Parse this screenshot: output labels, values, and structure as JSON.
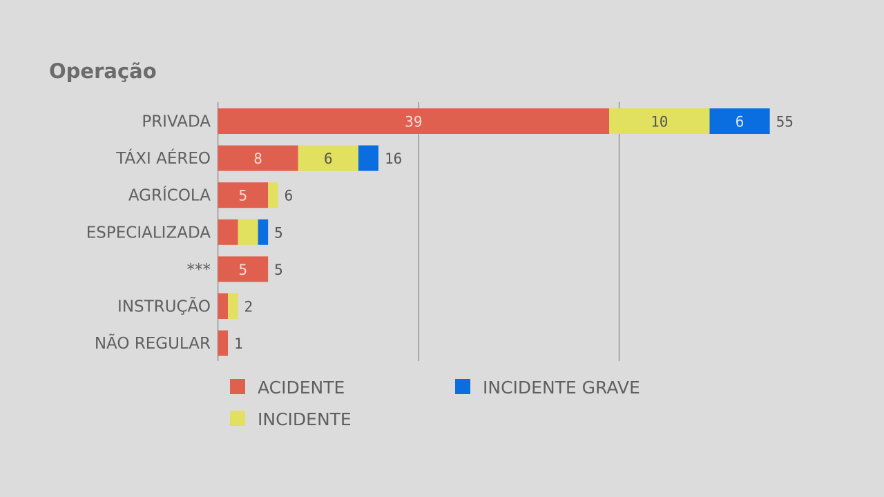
{
  "chart_data": {
    "type": "bar",
    "orientation": "horizontal",
    "stacked": true,
    "title": "Operação",
    "categories": [
      "PRIVADA",
      "TÁXI AÉREO",
      "AGRÍCOLA",
      "ESPECIALIZADA",
      "***",
      "INSTRUÇÃO",
      "NÃO REGULAR"
    ],
    "series": [
      {
        "name": "ACIDENTE",
        "color": "#e06050",
        "label_color": "#f6ddd8",
        "values": [
          39,
          8,
          5,
          2,
          5,
          1,
          1
        ],
        "labels": [
          "39",
          "8",
          "5",
          "",
          "5",
          "",
          ""
        ]
      },
      {
        "name": "INCIDENTE",
        "color": "#e1e05f",
        "label_color": "#555555",
        "values": [
          10,
          6,
          1,
          2,
          0,
          1,
          0
        ],
        "labels": [
          "10",
          "6",
          "",
          "",
          "",
          "",
          ""
        ]
      },
      {
        "name": "INCIDENTE GRAVE",
        "color": "#0a6ee0",
        "label_color": "#dde8f6",
        "values": [
          6,
          2,
          0,
          1,
          0,
          0,
          0
        ],
        "labels": [
          "6",
          "",
          "",
          "",
          "",
          "",
          ""
        ]
      }
    ],
    "totals": [
      "55",
      "16",
      "6",
      "5",
      "5",
      "2",
      "1"
    ],
    "xlim": [
      0,
      60
    ],
    "gridlines": [
      20,
      40
    ],
    "xlabel": "",
    "ylabel": "",
    "legend_position": "bottom"
  }
}
